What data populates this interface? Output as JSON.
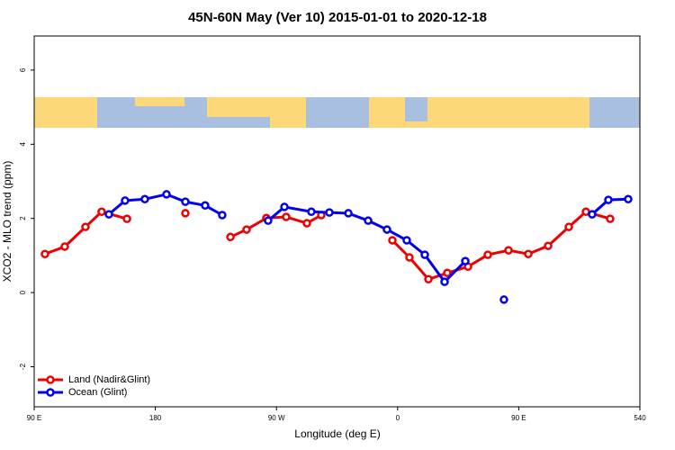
{
  "chart_data": {
    "type": "line",
    "title": "45N-60N May (Ver 10)   2015-01-01 to 2020-12-18",
    "xlabel": "Longitude (deg E)",
    "ylabel": "XCO2 - MLO trend (ppm)",
    "xlim": [
      90,
      540
    ],
    "ylim": [
      -3.08,
      6.92
    ],
    "xticks": [
      {
        "value": 90,
        "label": "90 E"
      },
      180,
      {
        "value": 270,
        "label": "90 W"
      },
      {
        "value": 360,
        "label": "0"
      },
      {
        "value": 450,
        "label": "90 E"
      },
      540
    ],
    "yticks": [
      -2,
      0,
      2,
      4,
      6
    ],
    "legend": "bottom-left",
    "series": [
      {
        "name": "Land (Nadir&Glint)",
        "color": "#ee0000",
        "x": [
          98,
          112.7,
          128.1,
          140.1,
          158.9,
          null,
          202.3,
          null,
          235.8,
          247.8,
          262.5,
          277.2,
          292.6,
          303.3,
          null,
          356.1,
          368.8,
          382.9,
          396.9,
          412.3,
          427,
          442.4,
          457.1,
          471.8,
          487.2,
          499.9,
          517.9
        ],
        "values": [
          1.04,
          1.24,
          1.77,
          2.18,
          1.99,
          null,
          2.14,
          null,
          1.5,
          1.7,
          2.01,
          2.04,
          1.87,
          2.09,
          null,
          1.41,
          0.95,
          0.36,
          0.53,
          0.7,
          1.02,
          1.14,
          1.04,
          1.26,
          1.77,
          2.18,
          1.99
        ]
      },
      {
        "name": "Ocean (Glint)",
        "color": "#0000ee",
        "x": [
          145.5,
          157.5,
          172.2,
          188.3,
          202.3,
          217,
          229.7,
          null,
          263.8,
          275.9,
          295.9,
          309.3,
          323.4,
          338.1,
          352.1,
          366.8,
          380.2,
          394.9,
          410.3,
          null,
          439,
          null,
          504.5,
          516.6,
          531.3
        ],
        "values": [
          2.11,
          2.48,
          2.52,
          2.65,
          2.45,
          2.35,
          2.09,
          null,
          1.94,
          2.31,
          2.18,
          2.16,
          2.14,
          1.94,
          1.7,
          1.41,
          1.02,
          0.29,
          0.85,
          null,
          -0.19,
          null,
          2.11,
          2.5,
          2.52
        ]
      }
    ]
  }
}
